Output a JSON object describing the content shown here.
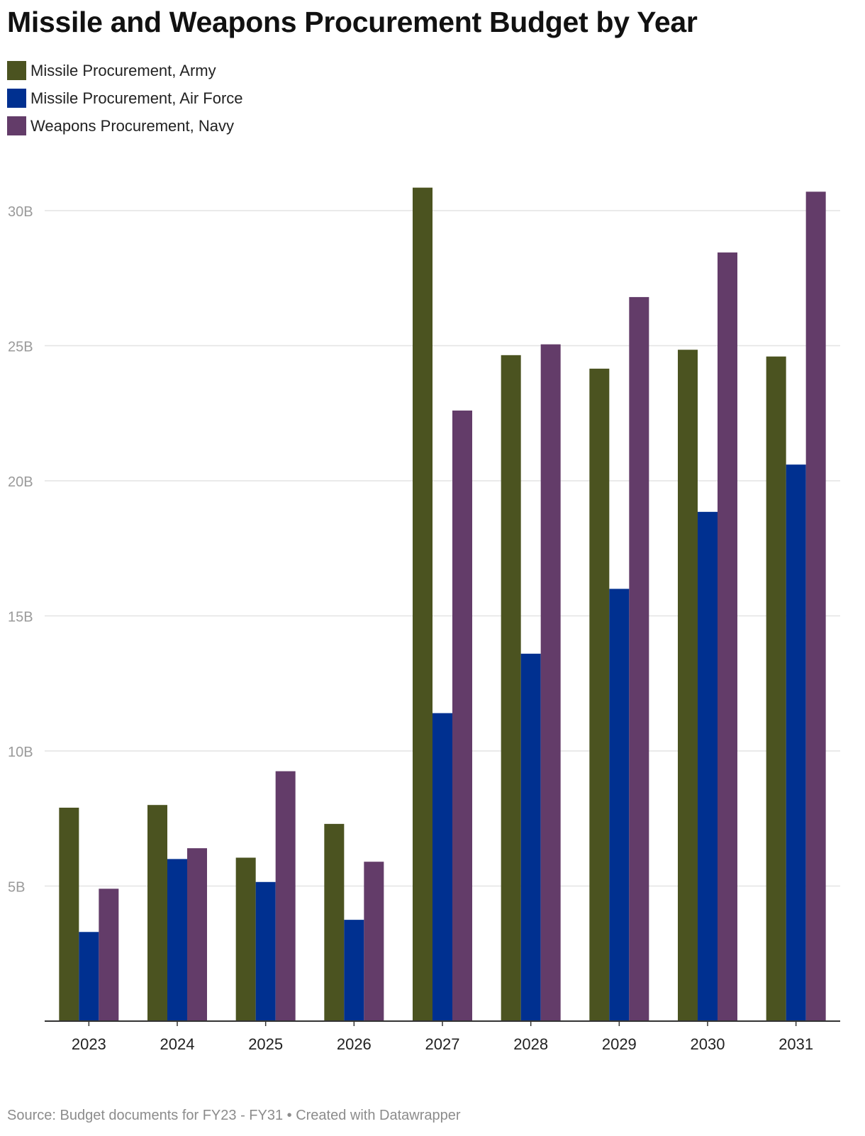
{
  "title": "Missile and Weapons Procurement Budget by Year",
  "footer": "Source: Budget documents for FY23 - FY31 • Created with Datawrapper",
  "chart_data": {
    "type": "bar",
    "title": "Missile and Weapons Procurement Budget by Year",
    "xlabel": "",
    "ylabel": "",
    "categories": [
      "2023",
      "2024",
      "2025",
      "2026",
      "2027",
      "2028",
      "2029",
      "2030",
      "2031"
    ],
    "series": [
      {
        "name": "Missile Procurement, Army",
        "color": "#4b5320",
        "values": [
          7.9,
          8.0,
          6.05,
          7.3,
          30.85,
          24.65,
          24.15,
          24.85,
          24.6
        ]
      },
      {
        "name": "Missile Procurement, Air Force",
        "color": "#003090",
        "values": [
          3.3,
          6.0,
          5.15,
          3.75,
          11.4,
          13.6,
          16.0,
          18.85,
          20.6
        ]
      },
      {
        "name": "Weapons Procurement, Navy",
        "color": "#633c69",
        "values": [
          4.9,
          6.4,
          9.25,
          5.9,
          22.6,
          25.05,
          26.8,
          28.45,
          30.7
        ]
      }
    ],
    "ylim": [
      0,
      30
    ],
    "yticks": [
      5,
      10,
      15,
      20,
      25,
      30
    ],
    "ytick_labels": [
      "5B",
      "10B",
      "15B",
      "20B",
      "25B",
      "30B"
    ],
    "grid": true,
    "legend_position": "top-left"
  }
}
